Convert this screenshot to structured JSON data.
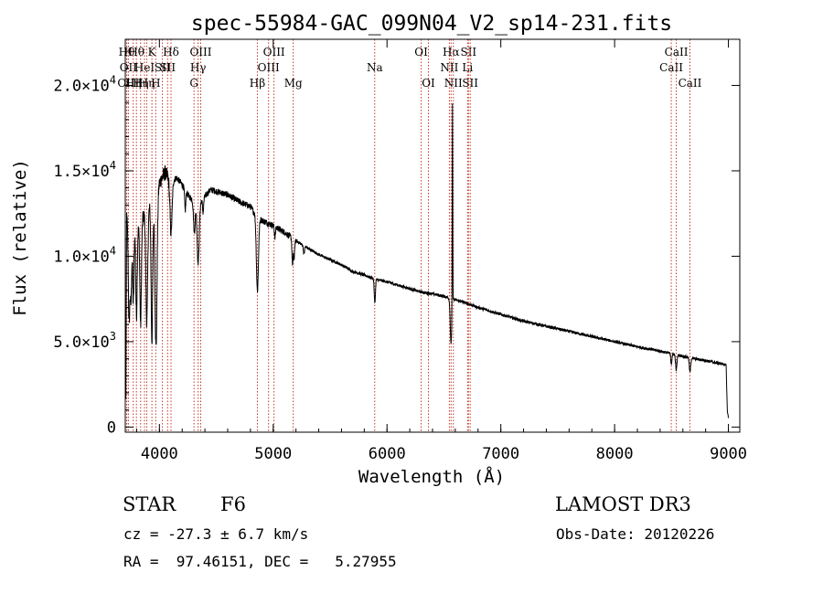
{
  "chart_data": {
    "type": "line",
    "title": "spec-55984-GAC_099N04_V2_sp14-231.fits",
    "xlabel": "Wavelength (Å)",
    "ylabel": "Flux (relative)",
    "xlim": [
      3700,
      9100
    ],
    "ylim": [
      -300,
      22700
    ],
    "x_ticks": [
      4000,
      5000,
      6000,
      7000,
      8000,
      9000
    ],
    "x_tick_labels": [
      "4000",
      "5000",
      "6000",
      "7000",
      "8000",
      "9000"
    ],
    "y_ticks": [
      0,
      5000,
      10000,
      15000,
      20000
    ],
    "y_tick_labels": [
      {
        "mant": "0",
        "exp": ""
      },
      {
        "mant": "5.0×10",
        "exp": "3"
      },
      {
        "mant": "1.0×10",
        "exp": "4"
      },
      {
        "mant": "1.5×10",
        "exp": "4"
      },
      {
        "mant": "2.0×10",
        "exp": "4"
      }
    ],
    "continuum": [
      [
        3705,
        1500
      ],
      [
        3712,
        12500
      ],
      [
        3730,
        10500
      ],
      [
        3760,
        11800
      ],
      [
        3800,
        11500
      ],
      [
        3850,
        12200
      ],
      [
        3900,
        12800
      ],
      [
        3950,
        13200
      ],
      [
        4000,
        14300
      ],
      [
        4050,
        14900
      ],
      [
        4100,
        14300
      ],
      [
        4150,
        14600
      ],
      [
        4200,
        14200
      ],
      [
        4250,
        13600
      ],
      [
        4300,
        13200
      ],
      [
        4350,
        13100
      ],
      [
        4400,
        13500
      ],
      [
        4450,
        13900
      ],
      [
        4500,
        13800
      ],
      [
        4600,
        13600
      ],
      [
        4700,
        13200
      ],
      [
        4800,
        12900
      ],
      [
        4860,
        12300
      ],
      [
        4900,
        12100
      ],
      [
        5000,
        11800
      ],
      [
        5100,
        11400
      ],
      [
        5200,
        10900
      ],
      [
        5300,
        10500
      ],
      [
        5400,
        10100
      ],
      [
        5500,
        9800
      ],
      [
        5600,
        9500
      ],
      [
        5700,
        9100
      ],
      [
        5800,
        8900
      ],
      [
        5900,
        8650
      ],
      [
        6000,
        8500
      ],
      [
        6100,
        8300
      ],
      [
        6200,
        8100
      ],
      [
        6300,
        7900
      ],
      [
        6400,
        7800
      ],
      [
        6500,
        7650
      ],
      [
        6600,
        7450
      ],
      [
        6700,
        7250
      ],
      [
        6800,
        7000
      ],
      [
        7000,
        6600
      ],
      [
        7200,
        6200
      ],
      [
        7400,
        5900
      ],
      [
        7600,
        5600
      ],
      [
        7800,
        5300
      ],
      [
        8000,
        5000
      ],
      [
        8200,
        4700
      ],
      [
        8400,
        4450
      ],
      [
        8500,
        4300
      ],
      [
        8600,
        4150
      ],
      [
        8700,
        4000
      ],
      [
        8800,
        3900
      ],
      [
        8900,
        3750
      ],
      [
        8950,
        3700
      ],
      [
        8980,
        3600
      ],
      [
        8990,
        1000
      ],
      [
        9000,
        500
      ]
    ],
    "absorption_features": [
      {
        "x": 3734,
        "depth": 4500,
        "width": 6
      },
      {
        "x": 3750,
        "depth": 4000,
        "width": 6
      },
      {
        "x": 3770,
        "depth": 4500,
        "width": 6
      },
      {
        "x": 3798,
        "depth": 5000,
        "width": 6
      },
      {
        "x": 3835,
        "depth": 6000,
        "width": 7
      },
      {
        "x": 3889,
        "depth": 6500,
        "width": 8
      },
      {
        "x": 3934,
        "depth": 8000,
        "width": 7
      },
      {
        "x": 3970,
        "depth": 9000,
        "width": 9
      },
      {
        "x": 4102,
        "depth": 3000,
        "width": 9
      },
      {
        "x": 4227,
        "depth": 1200,
        "width": 5
      },
      {
        "x": 4307,
        "depth": 1800,
        "width": 7
      },
      {
        "x": 4340,
        "depth": 3500,
        "width": 9
      },
      {
        "x": 4384,
        "depth": 800,
        "width": 5
      },
      {
        "x": 4861,
        "depth": 4300,
        "width": 9
      },
      {
        "x": 5015,
        "depth": 600,
        "width": 5
      },
      {
        "x": 5167,
        "depth": 900,
        "width": 4
      },
      {
        "x": 5173,
        "depth": 1100,
        "width": 4
      },
      {
        "x": 5184,
        "depth": 1200,
        "width": 4
      },
      {
        "x": 5270,
        "depth": 500,
        "width": 5
      },
      {
        "x": 5890,
        "depth": 900,
        "width": 4
      },
      {
        "x": 5896,
        "depth": 900,
        "width": 4
      },
      {
        "x": 6563,
        "depth": 2600,
        "width": 7
      },
      {
        "x": 8498,
        "depth": 600,
        "width": 5
      },
      {
        "x": 8542,
        "depth": 900,
        "width": 6
      },
      {
        "x": 8662,
        "depth": 850,
        "width": 6
      }
    ],
    "emission_spike": {
      "x": 6575,
      "peak": 19700,
      "description": "narrow spike"
    },
    "line_markers": [
      {
        "x": 3712,
        "label": "Hθ",
        "row": 0
      },
      {
        "x": 3727,
        "label": "OII",
        "row": 1
      },
      {
        "x": 3727,
        "label": "OIII",
        "row": 2
      },
      {
        "x": 3770,
        "label": "Hη",
        "row": 2
      },
      {
        "x": 3798,
        "label": "Hθ",
        "row": 0
      },
      {
        "x": 3835,
        "label": "Hη",
        "row": 2
      },
      {
        "x": 3869,
        "label": "HeI",
        "row": 1
      },
      {
        "x": 3889,
        "label": "Hη",
        "row": 2
      },
      {
        "x": 3934,
        "label": "K",
        "row": 0
      },
      {
        "x": 3968,
        "label": "H",
        "row": 2
      },
      {
        "x": 4026,
        "label": "SII",
        "row": 1
      },
      {
        "x": 4072,
        "label": "SII",
        "row": 1
      },
      {
        "x": 4102,
        "label": "Hδ",
        "row": 0
      },
      {
        "x": 4304,
        "label": "G",
        "row": 2
      },
      {
        "x": 4340,
        "label": "Hγ",
        "row": 1
      },
      {
        "x": 4363,
        "label": "OIII",
        "row": 0
      },
      {
        "x": 4861,
        "label": "Hβ",
        "row": 2
      },
      {
        "x": 4959,
        "label": "OIII",
        "row": 1
      },
      {
        "x": 5007,
        "label": "OIII",
        "row": 0
      },
      {
        "x": 5176,
        "label": "Mg",
        "row": 2
      },
      {
        "x": 5892,
        "label": "Na",
        "row": 1
      },
      {
        "x": 6300,
        "label": "OI",
        "row": 0
      },
      {
        "x": 6364,
        "label": "OI",
        "row": 2
      },
      {
        "x": 6548,
        "label": "NII",
        "row": 1
      },
      {
        "x": 6563,
        "label": "Hα",
        "row": 0
      },
      {
        "x": 6583,
        "label": "NII",
        "row": 2
      },
      {
        "x": 6716,
        "label": "SII",
        "row": 0
      },
      {
        "x": 6731,
        "label": "SII",
        "row": 2
      },
      {
        "x": 6708,
        "label": "Li",
        "row": 1
      },
      {
        "x": 8498,
        "label": "CaII",
        "row": 1
      },
      {
        "x": 8542,
        "label": "CaII",
        "row": 0
      },
      {
        "x": 8662,
        "label": "CaII",
        "row": 2
      }
    ]
  },
  "info": {
    "object_class": "STAR",
    "subclass": "F6",
    "survey": "LAMOST DR3",
    "redshift": "cz = -27.3 ± 6.7 km/s",
    "obs_date": "Obs-Date: 20120226",
    "coords": "RA =  97.46151, DEC =   5.27955"
  }
}
